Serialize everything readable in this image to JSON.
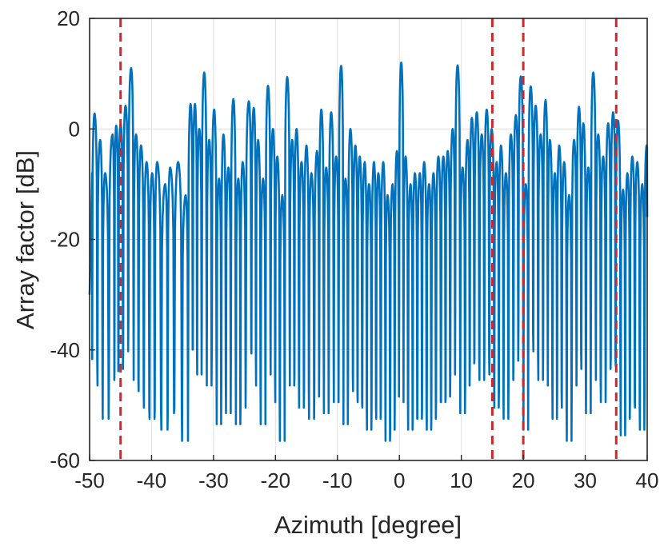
{
  "chart_data": {
    "type": "line",
    "title": "",
    "xlabel": "Azimuth [degree]",
    "ylabel": "Array factor [dB]",
    "xlim": [
      -50,
      40
    ],
    "ylim": [
      -60,
      20
    ],
    "xticks": [
      -50,
      -40,
      -30,
      -20,
      -10,
      0,
      10,
      20,
      30,
      40
    ],
    "xtick_labels": [
      "-50",
      "-40",
      "-30",
      "-20",
      "-10",
      "0",
      "10",
      "20",
      "30",
      "40"
    ],
    "yticks": [
      -60,
      -40,
      -20,
      0,
      20
    ],
    "ytick_labels": [
      "-60",
      "-40",
      "-20",
      "0",
      "20"
    ],
    "grid": true,
    "series": [
      {
        "color": "#0072bd",
        "peaks": [
          [
            -49.2,
            2.8
          ],
          [
            -48.3,
            -2
          ],
          [
            -47.5,
            -8
          ],
          [
            -46.3,
            -1
          ],
          [
            -45.7,
            0.6
          ],
          [
            -45,
            1
          ],
          [
            -44.2,
            4.2
          ],
          [
            -43.3,
            11
          ],
          [
            -42.5,
            -1
          ],
          [
            -41.7,
            -3
          ],
          [
            -40.8,
            -6
          ],
          [
            -39.9,
            -8
          ],
          [
            -39.1,
            -6
          ],
          [
            -37.8,
            -10
          ],
          [
            -37,
            -7
          ],
          [
            -35.7,
            -6
          ],
          [
            -34.5,
            -12
          ],
          [
            -33.7,
            4.5
          ],
          [
            -33,
            4.5
          ],
          [
            -32.3,
            0
          ],
          [
            -31.5,
            10.2
          ],
          [
            -30.7,
            -2
          ],
          [
            -29.9,
            3.5
          ],
          [
            -29.1,
            -9
          ],
          [
            -28.4,
            -1
          ],
          [
            -27.6,
            -7
          ],
          [
            -26.8,
            5.4
          ],
          [
            -26,
            -9
          ],
          [
            -25.3,
            -6
          ],
          [
            -24.3,
            5
          ],
          [
            -23.5,
            3.8
          ],
          [
            -22.8,
            -2
          ],
          [
            -22,
            -9
          ],
          [
            -21.2,
            7.8
          ],
          [
            -20.4,
            0
          ],
          [
            -19.7,
            -5
          ],
          [
            -18.9,
            -12
          ],
          [
            -18.1,
            9.4
          ],
          [
            -17.3,
            -2
          ],
          [
            -16.6,
            0
          ],
          [
            -15.8,
            -6
          ],
          [
            -15,
            -3
          ],
          [
            -14.2,
            -8
          ],
          [
            -13.3,
            -4
          ],
          [
            -12.6,
            3.5
          ],
          [
            -11.8,
            -7
          ],
          [
            -11,
            3
          ],
          [
            -10.2,
            -5
          ],
          [
            -9.4,
            11.4
          ],
          [
            -8.7,
            -9
          ],
          [
            -7.9,
            0
          ],
          [
            -7.1,
            -3
          ],
          [
            -6.4,
            -5
          ],
          [
            -5.6,
            -6
          ],
          [
            -4.9,
            -10
          ],
          [
            -4.1,
            -6
          ],
          [
            -3.4,
            -8
          ],
          [
            -2.6,
            -6
          ],
          [
            -1.9,
            -12
          ],
          [
            -1.1,
            -10
          ],
          [
            -0.4,
            -4
          ],
          [
            0.3,
            12
          ],
          [
            1,
            -5
          ],
          [
            1.8,
            -10
          ],
          [
            2.5,
            -8
          ],
          [
            3.3,
            -8
          ],
          [
            4,
            -6
          ],
          [
            4.8,
            -10
          ],
          [
            5.5,
            -8
          ],
          [
            6.3,
            -5
          ],
          [
            7.1,
            -5
          ],
          [
            7.8,
            -4
          ],
          [
            8.6,
            0
          ],
          [
            9.4,
            11.5
          ],
          [
            10.2,
            -7
          ],
          [
            11,
            -2
          ],
          [
            11.7,
            2
          ],
          [
            12.5,
            3
          ],
          [
            13.3,
            -1
          ],
          [
            14.1,
            3.5
          ],
          [
            14.9,
            0
          ],
          [
            15.7,
            -6
          ],
          [
            16.4,
            -3
          ],
          [
            17.2,
            -8
          ],
          [
            18,
            -1
          ],
          [
            18.8,
            2.5
          ],
          [
            19.6,
            9.5
          ],
          [
            20.4,
            -10
          ],
          [
            21.2,
            7.7
          ],
          [
            22,
            4.2
          ],
          [
            22.8,
            -1
          ],
          [
            23.6,
            5.2
          ],
          [
            24.3,
            -2
          ],
          [
            25.1,
            -8
          ],
          [
            25.8,
            -3
          ],
          [
            26.6,
            -6
          ],
          [
            27.4,
            -12
          ],
          [
            28.2,
            -2
          ],
          [
            29,
            4
          ],
          [
            29.7,
            1
          ],
          [
            30.5,
            -7
          ],
          [
            31.3,
            10.2
          ],
          [
            32.1,
            -1
          ],
          [
            32.9,
            -5
          ],
          [
            33.7,
            1
          ],
          [
            34.5,
            3
          ],
          [
            35.3,
            1.5
          ],
          [
            36.1,
            -11
          ],
          [
            36.8,
            -8
          ],
          [
            37.6,
            -5
          ],
          [
            38.4,
            -6
          ],
          [
            39.2,
            -10
          ],
          [
            39.9,
            -3
          ]
        ]
      }
    ],
    "vlines": {
      "color": "#d1272c",
      "style": "dashed",
      "x": [
        -45,
        15,
        20,
        35
      ]
    }
  }
}
